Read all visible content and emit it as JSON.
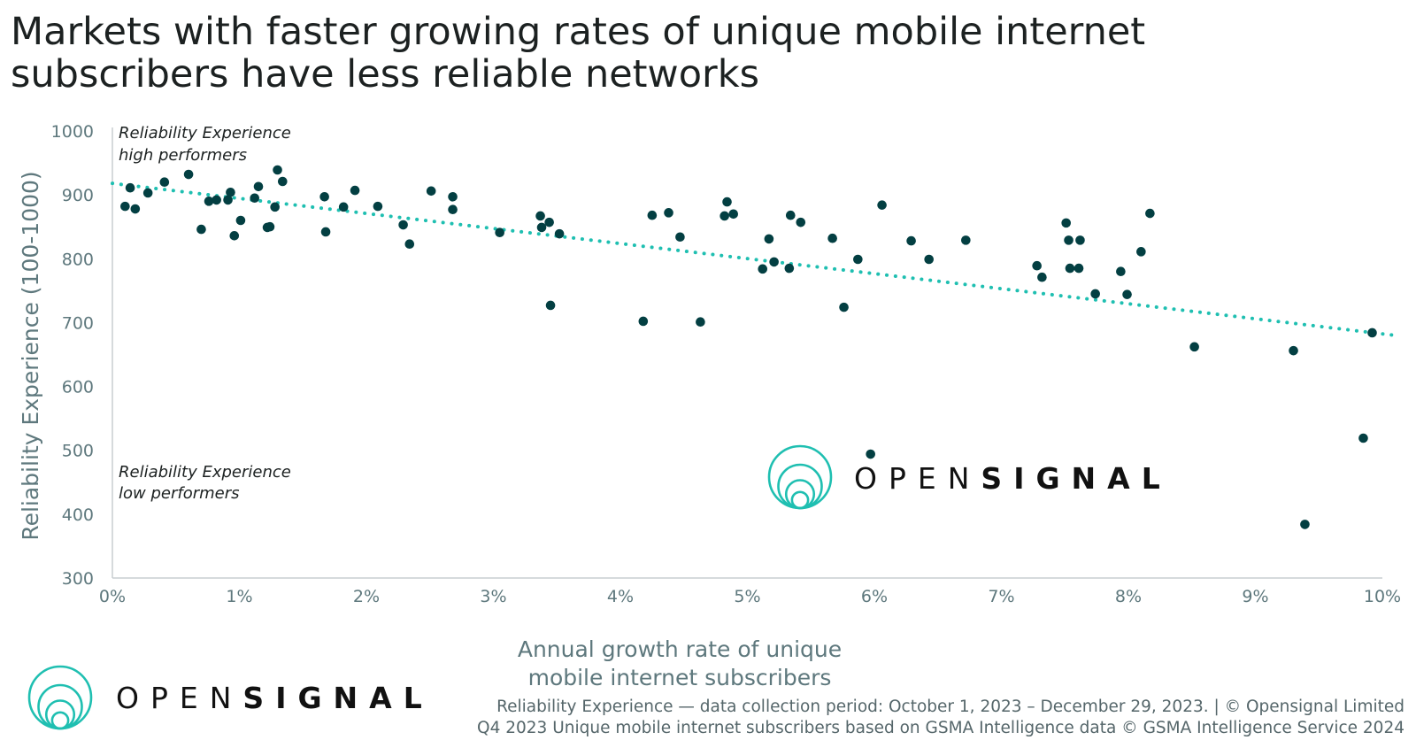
{
  "title": {
    "line1": "Markets with faster growing rates of unique mobile internet",
    "line2": "subscribers have less reliable networks"
  },
  "annotations": {
    "high_line1": "Reliability Experience",
    "high_line2": "high performers",
    "low_line1": "Reliability Experience",
    "low_line2": "low performers"
  },
  "logo": {
    "text_light": "OPEN",
    "text_bold": "SIGNAL",
    "color": "#1fbfb1"
  },
  "footer": {
    "line1": "Reliability Experience — data collection period: October 1, 2023 – December 29, 2023.  |  © Opensignal Limited",
    "line2": "Q4 2023 Unique mobile internet subscribers based on GSMA Intelligence data © GSMA Intelligence Service 2024"
  },
  "colors": {
    "points": "#033f42",
    "trendline": "#1fbfb1",
    "axis": "#c9ced0"
  },
  "chart_data": {
    "type": "scatter",
    "xlabel_line1": "Annual growth rate of unique",
    "xlabel_line2": "mobile internet subscribers",
    "ylabel": "Reliability Experience (100-1000)",
    "xlim": [
      0,
      10
    ],
    "ylim": [
      300,
      1000
    ],
    "x_unit": "%",
    "x_ticks": [
      "0%",
      "1%",
      "2%",
      "3%",
      "4%",
      "5%",
      "6%",
      "7%",
      "8%",
      "9%",
      "10%"
    ],
    "y_ticks": [
      "1000",
      "900",
      "800",
      "700",
      "600",
      "500",
      "400",
      "300"
    ],
    "grid": false,
    "trendline": {
      "style": "dotted",
      "x": [
        0,
        10.1
      ],
      "y": [
        918,
        680
      ]
    },
    "points": [
      [
        0.1,
        882
      ],
      [
        0.14,
        911
      ],
      [
        0.18,
        878
      ],
      [
        0.28,
        903
      ],
      [
        0.41,
        920
      ],
      [
        0.6,
        932
      ],
      [
        0.7,
        846
      ],
      [
        0.76,
        890
      ],
      [
        0.82,
        892
      ],
      [
        0.91,
        892
      ],
      [
        0.93,
        904
      ],
      [
        0.96,
        836
      ],
      [
        1.01,
        860
      ],
      [
        1.12,
        895
      ],
      [
        1.15,
        913
      ],
      [
        1.22,
        849
      ],
      [
        1.24,
        850
      ],
      [
        1.28,
        881
      ],
      [
        1.3,
        939
      ],
      [
        1.34,
        921
      ],
      [
        1.67,
        897
      ],
      [
        1.68,
        842
      ],
      [
        1.82,
        881
      ],
      [
        1.91,
        907
      ],
      [
        2.09,
        882
      ],
      [
        2.29,
        853
      ],
      [
        2.34,
        823
      ],
      [
        2.51,
        906
      ],
      [
        2.68,
        897
      ],
      [
        2.68,
        877
      ],
      [
        3.05,
        841
      ],
      [
        3.37,
        867
      ],
      [
        3.38,
        849
      ],
      [
        3.44,
        857
      ],
      [
        3.52,
        839
      ],
      [
        3.45,
        727
      ],
      [
        4.25,
        868
      ],
      [
        4.38,
        872
      ],
      [
        4.47,
        834
      ],
      [
        4.18,
        702
      ],
      [
        4.63,
        701
      ],
      [
        4.84,
        889
      ],
      [
        4.82,
        867
      ],
      [
        4.89,
        870
      ],
      [
        5.17,
        831
      ],
      [
        5.12,
        784
      ],
      [
        5.21,
        795
      ],
      [
        5.33,
        785
      ],
      [
        5.34,
        868
      ],
      [
        5.42,
        857
      ],
      [
        5.67,
        832
      ],
      [
        5.76,
        724
      ],
      [
        5.87,
        799
      ],
      [
        6.06,
        884
      ],
      [
        6.29,
        828
      ],
      [
        6.43,
        799
      ],
      [
        6.72,
        829
      ],
      [
        7.28,
        789
      ],
      [
        7.32,
        771
      ],
      [
        7.51,
        856
      ],
      [
        7.53,
        829
      ],
      [
        7.62,
        829
      ],
      [
        7.54,
        785
      ],
      [
        7.61,
        785
      ],
      [
        7.74,
        745
      ],
      [
        7.94,
        780
      ],
      [
        7.99,
        744
      ],
      [
        8.1,
        811
      ],
      [
        8.17,
        871
      ],
      [
        8.52,
        662
      ],
      [
        9.3,
        656
      ],
      [
        9.92,
        684
      ],
      [
        9.85,
        519
      ],
      [
        9.39,
        384
      ],
      [
        5.97,
        494
      ]
    ]
  }
}
